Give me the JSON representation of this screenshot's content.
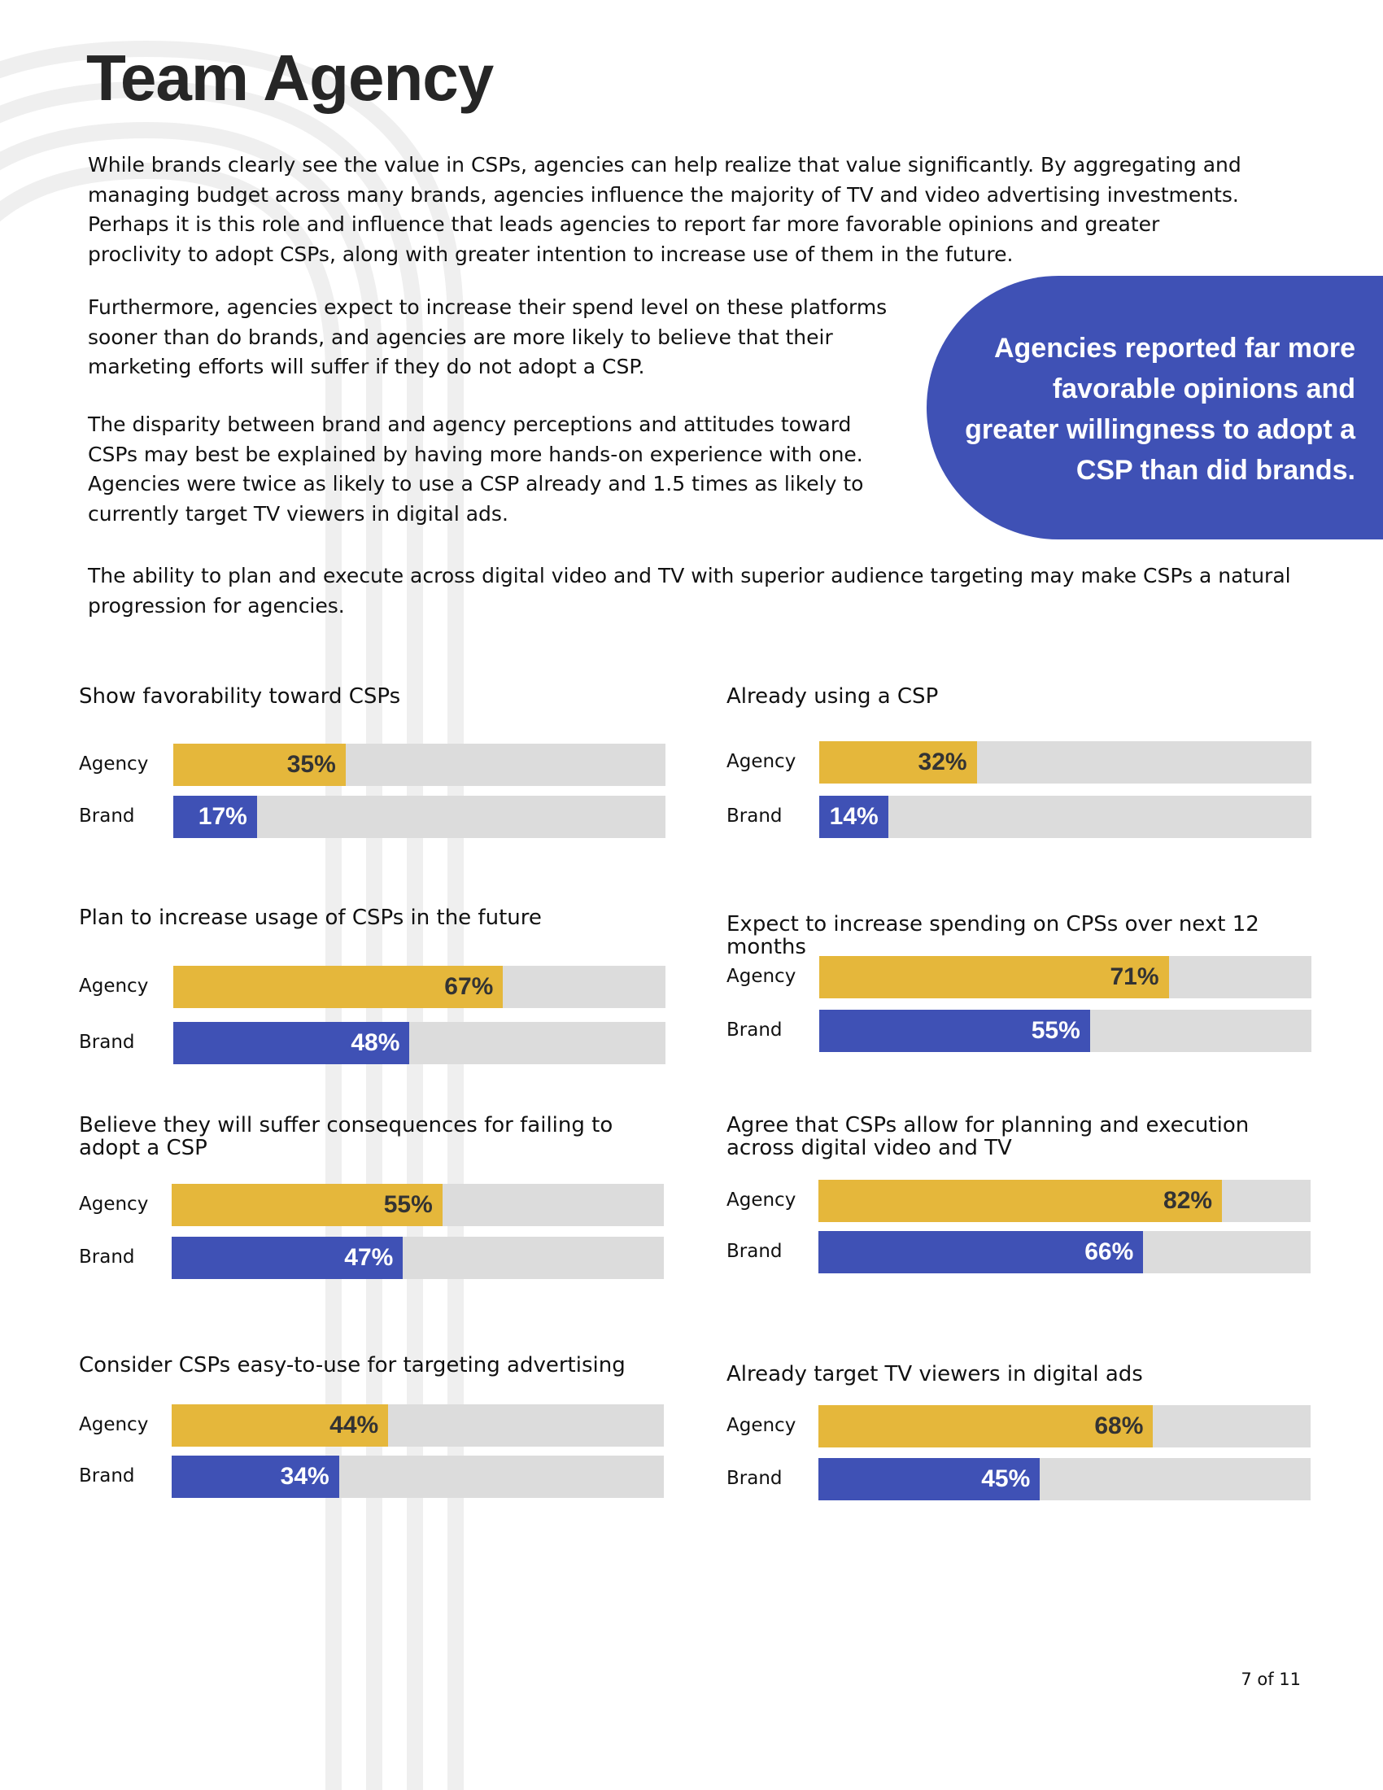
{
  "document": {
    "title": "Team Agency",
    "paragraphs": [
      "While brands clearly see the value in CSPs, agencies can help realize that value significantly. By aggregating and managing budget across many brands, agencies influence the majority of TV and video advertising investments. Perhaps it is this role and influence that leads agencies to report far more favorable opinions and greater proclivity to adopt CSPs, along with greater intention to increase use of them in the future.",
      "Furthermore, agencies expect to increase their spend level on these platforms sooner than do brands, and agencies are more likely to believe that their marketing efforts will suffer if they do not adopt a CSP.",
      "The disparity between brand and agency perceptions and attitudes toward CSPs may best be explained by having more hands-on experience with one. Agencies were twice as likely to use a CSP already and 1.5 times as likely to currently target TV viewers in digital ads.",
      "The ability to plan and execute across digital video and TV with superior audience targeting may make CSPs a natural progression for agencies."
    ],
    "callout": "Agencies reported far more favorable opinions and greater willingness to adopt a CSP than did brands.",
    "page_number": "7 of 11"
  },
  "chart_data": [
    {
      "type": "bar",
      "title": "Show favorability toward CSPs",
      "categories": [
        "Agency",
        "Brand"
      ],
      "values": [
        35,
        17
      ],
      "value_labels": [
        "35%",
        "17%"
      ],
      "colors": [
        "#e5b73b",
        "#3f51b5"
      ],
      "xlim": [
        0,
        100
      ]
    },
    {
      "type": "bar",
      "title": "Already using a CSP",
      "categories": [
        "Agency",
        "Brand"
      ],
      "values": [
        32,
        14
      ],
      "value_labels": [
        "32%",
        "14%"
      ],
      "colors": [
        "#e5b73b",
        "#3f51b5"
      ],
      "xlim": [
        0,
        100
      ]
    },
    {
      "type": "bar",
      "title": "Plan to increase usage of CSPs in the future",
      "categories": [
        "Agency",
        "Brand"
      ],
      "values": [
        67,
        48
      ],
      "value_labels": [
        "67%",
        "48%"
      ],
      "colors": [
        "#e5b73b",
        "#3f51b5"
      ],
      "xlim": [
        0,
        100
      ]
    },
    {
      "type": "bar",
      "title": "Expect to increase spending on CPSs over next 12 months",
      "categories": [
        "Agency",
        "Brand"
      ],
      "values": [
        71,
        55
      ],
      "value_labels": [
        "71%",
        "55%"
      ],
      "colors": [
        "#e5b73b",
        "#3f51b5"
      ],
      "xlim": [
        0,
        100
      ]
    },
    {
      "type": "bar",
      "title": "Believe they will suffer consequences for failing to adopt a CSP",
      "categories": [
        "Agency",
        "Brand"
      ],
      "values": [
        55,
        47
      ],
      "value_labels": [
        "55%",
        "47%"
      ],
      "colors": [
        "#e5b73b",
        "#3f51b5"
      ],
      "xlim": [
        0,
        100
      ]
    },
    {
      "type": "bar",
      "title": "Agree that CSPs allow for planning and execution across digital video and TV",
      "categories": [
        "Agency",
        "Brand"
      ],
      "values": [
        82,
        66
      ],
      "value_labels": [
        "82%",
        "66%"
      ],
      "colors": [
        "#e5b73b",
        "#3f51b5"
      ],
      "xlim": [
        0,
        100
      ]
    },
    {
      "type": "bar",
      "title": "Consider CSPs easy-to-use for targeting advertising",
      "categories": [
        "Agency",
        "Brand"
      ],
      "values": [
        44,
        34
      ],
      "value_labels": [
        "44%",
        "34%"
      ],
      "colors": [
        "#e5b73b",
        "#3f51b5"
      ],
      "xlim": [
        0,
        100
      ]
    },
    {
      "type": "bar",
      "title": "Already target TV viewers in digital ads",
      "categories": [
        "Agency",
        "Brand"
      ],
      "values": [
        68,
        45
      ],
      "value_labels": [
        "68%",
        "45%"
      ],
      "colors": [
        "#e5b73b",
        "#3f51b5"
      ],
      "xlim": [
        0,
        100
      ]
    }
  ]
}
